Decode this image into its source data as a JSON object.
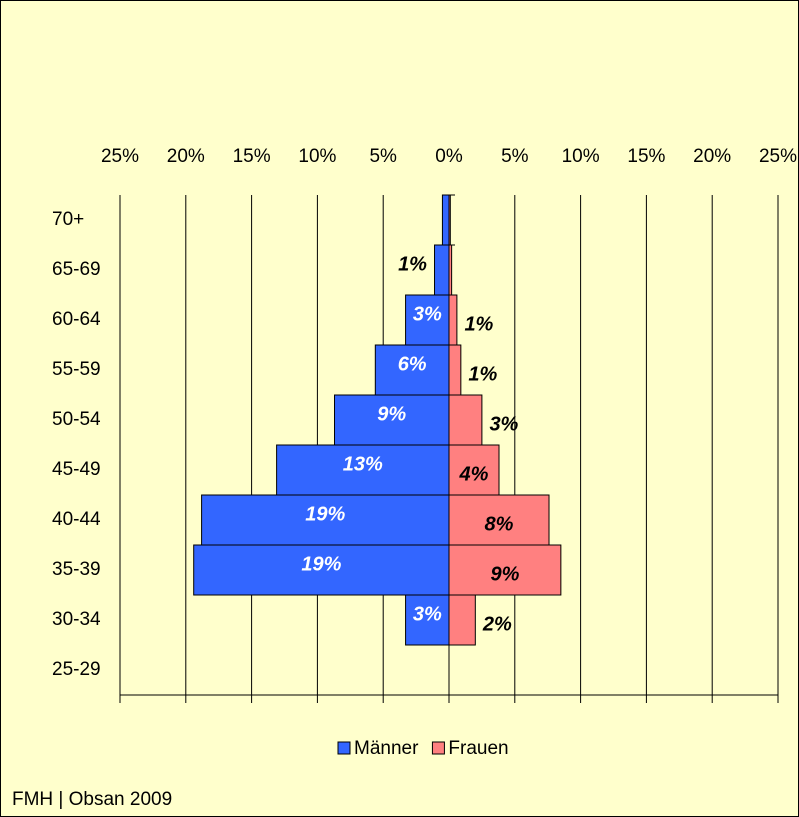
{
  "chart_data": {
    "type": "pyramid",
    "categories": [
      "70+",
      "65-69",
      "60-64",
      "55-59",
      "50-54",
      "45-49",
      "40-44",
      "35-39",
      "30-34",
      "25-29"
    ],
    "series": [
      {
        "name": "Männer",
        "color": "#3366ff",
        "side": "left",
        "values": [
          0.5,
          1.1,
          3.3,
          5.6,
          8.7,
          13.1,
          18.8,
          19.4,
          3.3,
          0
        ],
        "value_labels": [
          null,
          "1%",
          "3%",
          "6%",
          "9%",
          "13%",
          "19%",
          "19%",
          "3%",
          null
        ]
      },
      {
        "name": "Frauen",
        "color": "#ff8080",
        "side": "right",
        "values": [
          0.1,
          0.2,
          0.6,
          0.9,
          2.5,
          3.8,
          7.6,
          8.5,
          2.0,
          0
        ],
        "value_labels": [
          null,
          null,
          "1%",
          "1%",
          "3%",
          "4%",
          "8%",
          "9%",
          "2%",
          null
        ]
      }
    ],
    "xlim": [
      -25,
      25
    ],
    "xticks": [
      {
        "value": -25,
        "label": "25%"
      },
      {
        "value": -20,
        "label": "20%"
      },
      {
        "value": -15,
        "label": "15%"
      },
      {
        "value": -10,
        "label": "10%"
      },
      {
        "value": -5,
        "label": "5%"
      },
      {
        "value": 0,
        "label": "0%"
      },
      {
        "value": 5,
        "label": "5%"
      },
      {
        "value": 10,
        "label": "10%"
      },
      {
        "value": 15,
        "label": "15%"
      },
      {
        "value": 20,
        "label": "20%"
      },
      {
        "value": 25,
        "label": "25%"
      }
    ],
    "grid": true,
    "legend": "bottom",
    "source": "FMH | Obsan 2009"
  }
}
